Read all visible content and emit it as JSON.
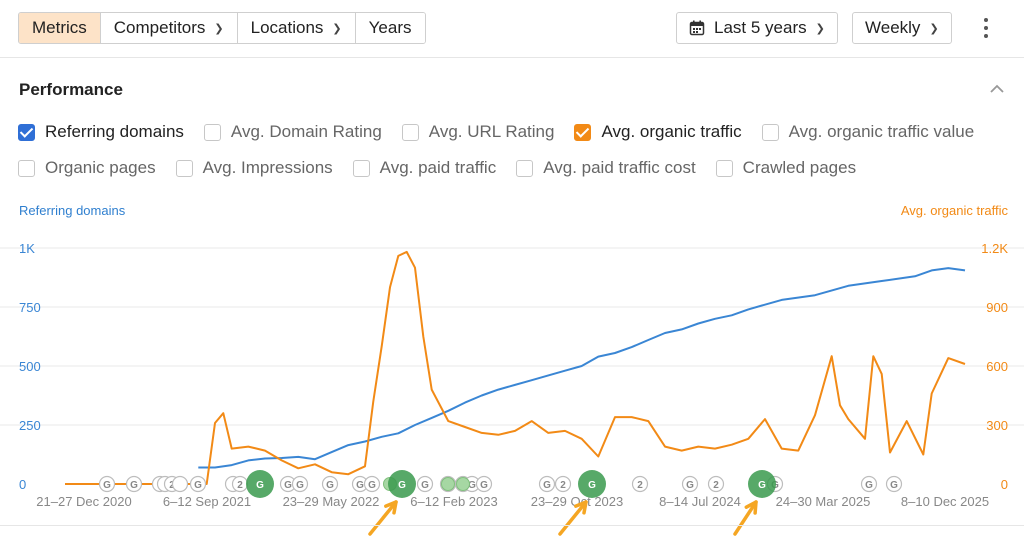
{
  "toolbar": {
    "segments": [
      "Metrics",
      "Competitors",
      "Locations",
      "Years"
    ],
    "active_segment": "Metrics",
    "period": "Last 5 years",
    "interval": "Weekly",
    "icons": {
      "calendar": "calendar-icon",
      "more": "more-vertical-icon",
      "chevron": "chevron-down-icon"
    }
  },
  "performance": {
    "title": "Performance",
    "checkboxes_row1": [
      {
        "label": "Referring domains",
        "checked": true,
        "color": "#2f6fd6"
      },
      {
        "label": "Avg. Domain Rating",
        "checked": false
      },
      {
        "label": "Avg. URL Rating",
        "checked": false
      },
      {
        "label": "Avg. organic traffic",
        "checked": true,
        "color": "#f28a16"
      },
      {
        "label": "Avg. organic traffic value",
        "checked": false
      }
    ],
    "checkboxes_row2": [
      {
        "label": "Organic pages",
        "checked": false
      },
      {
        "label": "Avg. Impressions",
        "checked": false
      },
      {
        "label": "Avg. paid traffic",
        "checked": false
      },
      {
        "label": "Avg. paid traffic cost",
        "checked": false
      },
      {
        "label": "Crawled pages",
        "checked": false
      }
    ]
  },
  "colors": {
    "blue": "#3a86d4",
    "orange": "#f28a16",
    "marker_green": "#3a9a4e",
    "arrow": "#f5a623"
  },
  "chart_data": {
    "type": "line",
    "left_axis_title": "Referring domains",
    "right_axis_title": "Avg. organic traffic",
    "left_ticks": [
      "1K",
      "750",
      "500",
      "250",
      "0"
    ],
    "right_ticks": [
      "1.2K",
      "900",
      "600",
      "300",
      "0"
    ],
    "ylim_left": [
      0,
      1000
    ],
    "ylim_right": [
      0,
      1200
    ],
    "x_labels": [
      "21–27 Dec 2020",
      "6–12 Sep 2021",
      "23–29 May 2022",
      "6–12 Feb 2023",
      "23–29 Oct 2023",
      "8–14 Jul 2024",
      "24–30 Mar 2025",
      "8–10 Dec 2025"
    ],
    "series": [
      {
        "name": "Referring domains",
        "axis": "left",
        "color": "#3a86d4",
        "values": [
          [
            2021.7,
            70
          ],
          [
            2021.8,
            70
          ],
          [
            2021.9,
            80
          ],
          [
            2022.0,
            100
          ],
          [
            2022.1,
            108
          ],
          [
            2022.2,
            110
          ],
          [
            2022.3,
            115
          ],
          [
            2022.4,
            105
          ],
          [
            2022.5,
            135
          ],
          [
            2022.6,
            165
          ],
          [
            2022.7,
            180
          ],
          [
            2022.8,
            200
          ],
          [
            2022.9,
            215
          ],
          [
            2023.0,
            250
          ],
          [
            2023.1,
            280
          ],
          [
            2023.2,
            310
          ],
          [
            2023.3,
            345
          ],
          [
            2023.4,
            375
          ],
          [
            2023.5,
            400
          ],
          [
            2023.6,
            420
          ],
          [
            2023.7,
            440
          ],
          [
            2023.8,
            460
          ],
          [
            2023.9,
            480
          ],
          [
            2024.0,
            500
          ],
          [
            2024.1,
            540
          ],
          [
            2024.2,
            555
          ],
          [
            2024.3,
            580
          ],
          [
            2024.4,
            610
          ],
          [
            2024.5,
            640
          ],
          [
            2024.6,
            655
          ],
          [
            2024.7,
            680
          ],
          [
            2024.8,
            700
          ],
          [
            2024.9,
            715
          ],
          [
            2025.0,
            740
          ],
          [
            2025.2,
            780
          ],
          [
            2025.4,
            800
          ],
          [
            2025.6,
            840
          ],
          [
            2025.8,
            860
          ],
          [
            2026.0,
            880
          ],
          [
            2026.1,
            905
          ],
          [
            2026.2,
            915
          ],
          [
            2026.3,
            905
          ]
        ]
      },
      {
        "name": "Avg. organic traffic",
        "axis": "right",
        "color": "#f28a16",
        "values": [
          [
            2020.9,
            0
          ],
          [
            2021.3,
            0
          ],
          [
            2021.6,
            0
          ],
          [
            2021.75,
            0
          ],
          [
            2021.8,
            310
          ],
          [
            2021.85,
            360
          ],
          [
            2021.9,
            180
          ],
          [
            2022.0,
            190
          ],
          [
            2022.1,
            170
          ],
          [
            2022.2,
            120
          ],
          [
            2022.3,
            80
          ],
          [
            2022.4,
            100
          ],
          [
            2022.5,
            60
          ],
          [
            2022.6,
            50
          ],
          [
            2022.7,
            90
          ],
          [
            2022.75,
            420
          ],
          [
            2022.8,
            700
          ],
          [
            2022.85,
            1000
          ],
          [
            2022.9,
            1160
          ],
          [
            2022.95,
            1180
          ],
          [
            2023.0,
            1100
          ],
          [
            2023.05,
            750
          ],
          [
            2023.1,
            480
          ],
          [
            2023.2,
            320
          ],
          [
            2023.3,
            290
          ],
          [
            2023.4,
            260
          ],
          [
            2023.5,
            250
          ],
          [
            2023.6,
            270
          ],
          [
            2023.7,
            320
          ],
          [
            2023.8,
            260
          ],
          [
            2023.9,
            270
          ],
          [
            2024.0,
            230
          ],
          [
            2024.1,
            140
          ],
          [
            2024.2,
            340
          ],
          [
            2024.3,
            340
          ],
          [
            2024.4,
            320
          ],
          [
            2024.5,
            190
          ],
          [
            2024.6,
            170
          ],
          [
            2024.7,
            190
          ],
          [
            2024.8,
            180
          ],
          [
            2024.9,
            200
          ],
          [
            2025.0,
            230
          ],
          [
            2025.1,
            330
          ],
          [
            2025.2,
            180
          ],
          [
            2025.3,
            170
          ],
          [
            2025.4,
            350
          ],
          [
            2025.5,
            650
          ],
          [
            2025.55,
            400
          ],
          [
            2025.6,
            330
          ],
          [
            2025.7,
            230
          ],
          [
            2025.75,
            650
          ],
          [
            2025.8,
            560
          ],
          [
            2025.85,
            160
          ],
          [
            2025.95,
            320
          ],
          [
            2026.05,
            150
          ],
          [
            2026.1,
            460
          ],
          [
            2026.2,
            640
          ],
          [
            2026.3,
            610
          ]
        ]
      }
    ],
    "grid": true,
    "annotations": {
      "marker_labels": [
        "G",
        "G",
        "2",
        "2"
      ],
      "arrows": 3
    }
  }
}
